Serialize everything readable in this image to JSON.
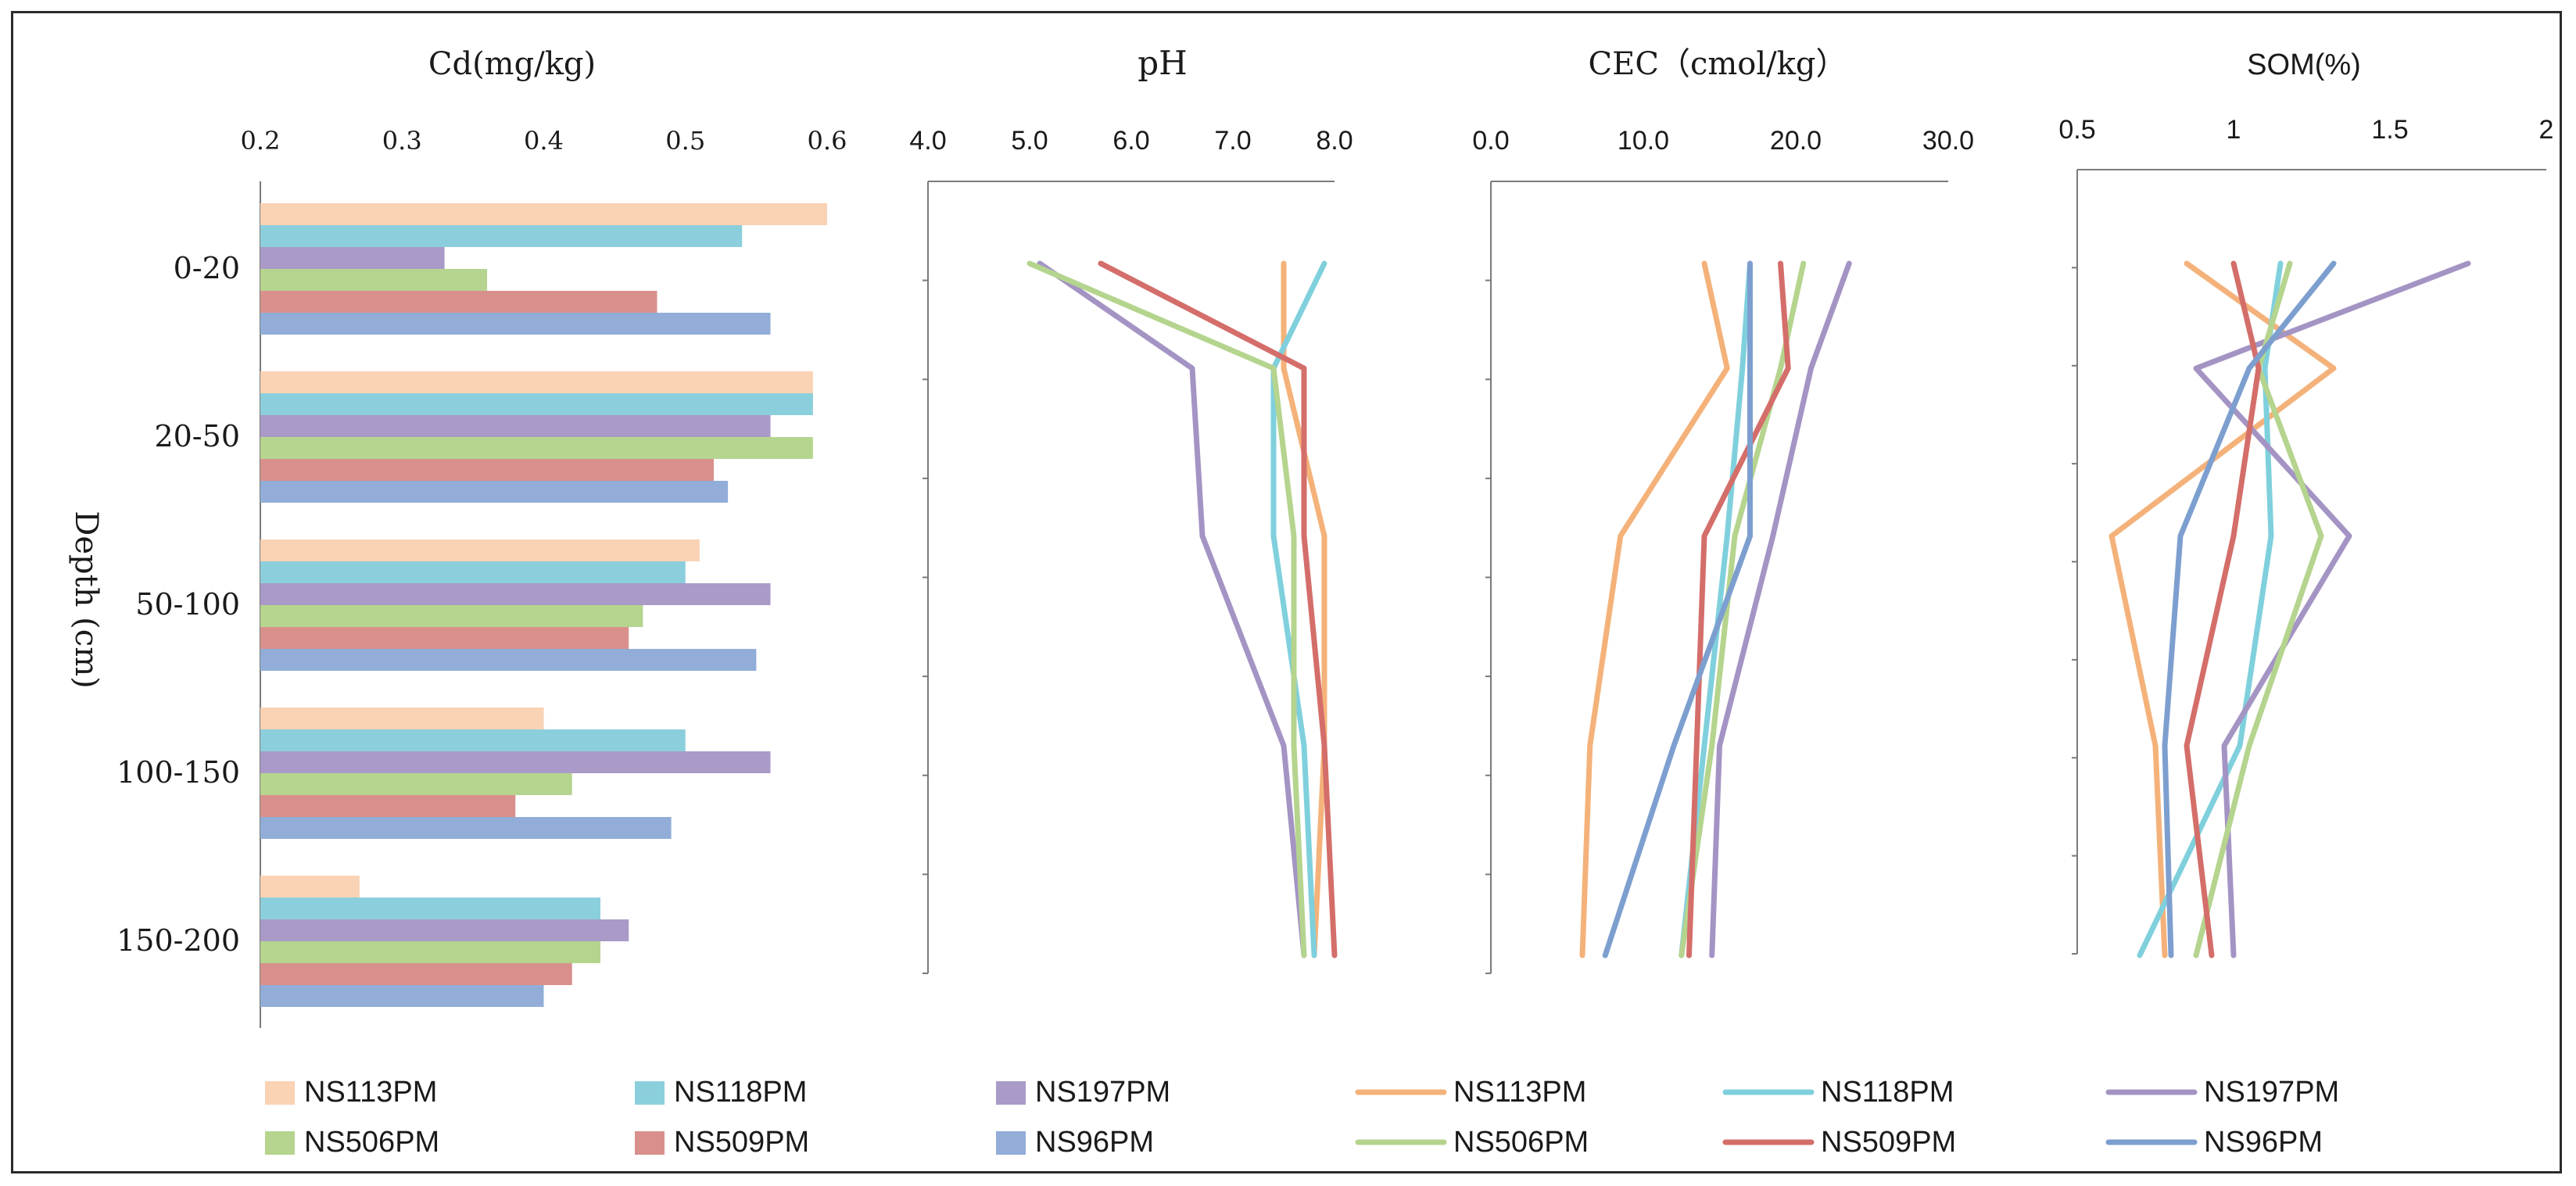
{
  "chart_data": [
    {
      "type": "bar",
      "orientation": "horizontal",
      "title": "Cd(mg/kg)",
      "ylabel": "Depth (cm)",
      "xlim": [
        0.2,
        0.6
      ],
      "x_ticks": [
        "0.2",
        "0.3",
        "0.4",
        "0.5",
        "0.6"
      ],
      "categories": [
        "0-20",
        "20-50",
        "50-100",
        "100-150",
        "150-200"
      ],
      "series": [
        {
          "name": "NS113PM",
          "color": "#fad2b4",
          "values": [
            0.6,
            0.59,
            0.51,
            0.4,
            0.27
          ]
        },
        {
          "name": "NS118PM",
          "color": "#8ccfdc",
          "values": [
            0.54,
            0.59,
            0.5,
            0.5,
            0.44
          ]
        },
        {
          "name": "NS197PM",
          "color": "#a99ac8",
          "values": [
            0.33,
            0.56,
            0.56,
            0.56,
            0.46
          ]
        },
        {
          "name": "NS506PM",
          "color": "#b5d58e",
          "values": [
            0.36,
            0.59,
            0.47,
            0.42,
            0.44
          ]
        },
        {
          "name": "NS509PM",
          "color": "#d9908c",
          "values": [
            0.48,
            0.52,
            0.46,
            0.38,
            0.42
          ]
        },
        {
          "name": "NS96PM",
          "color": "#92aed8",
          "values": [
            0.56,
            0.53,
            0.55,
            0.49,
            0.4
          ]
        }
      ]
    },
    {
      "type": "line",
      "title": "pH",
      "xlim": [
        4.0,
        8.0
      ],
      "x_ticks": [
        "4.0",
        "5.0",
        "6.0",
        "7.0",
        "8.0"
      ],
      "y": [
        10,
        35,
        75,
        125,
        175
      ],
      "ylim": [
        200,
        0
      ],
      "series": [
        {
          "name": "NS113PM",
          "color": "#f4b27a",
          "values": [
            7.5,
            7.5,
            7.9,
            7.9,
            7.8
          ]
        },
        {
          "name": "NS118PM",
          "color": "#7fd0dc",
          "values": [
            7.9,
            7.4,
            7.4,
            7.7,
            7.8
          ]
        },
        {
          "name": "NS197PM",
          "color": "#a494c4",
          "values": [
            5.1,
            6.6,
            6.7,
            7.5,
            7.7
          ]
        },
        {
          "name": "NS506PM",
          "color": "#b5d48e",
          "values": [
            5.0,
            7.4,
            7.6,
            7.6,
            7.7
          ]
        },
        {
          "name": "NS509PM",
          "color": "#d46e6a",
          "values": [
            5.7,
            7.7,
            7.7,
            7.9,
            8.0
          ]
        },
        {
          "name": "NS96PM",
          "color": "#7d9fcf",
          "values": [
            null,
            null,
            null,
            null,
            null
          ]
        }
      ]
    },
    {
      "type": "line",
      "title": "CEC（cmol/kg）",
      "xlim": [
        0.0,
        30.0
      ],
      "x_ticks": [
        "0.0",
        "10.0",
        "20.0",
        "30.0"
      ],
      "y": [
        10,
        35,
        75,
        125,
        175
      ],
      "ylim": [
        200,
        0
      ],
      "series": [
        {
          "name": "NS113PM",
          "color": "#f4b27a",
          "values": [
            14.0,
            15.5,
            8.5,
            6.5,
            6.0
          ]
        },
        {
          "name": "NS118PM",
          "color": "#7fd0dc",
          "values": [
            17.0,
            16.5,
            15.5,
            14.0,
            12.5
          ]
        },
        {
          "name": "NS197PM",
          "color": "#a494c4",
          "values": [
            23.5,
            21.0,
            18.5,
            15.0,
            14.5
          ]
        },
        {
          "name": "NS506PM",
          "color": "#b5d48e",
          "values": [
            20.5,
            19.0,
            16.0,
            14.5,
            12.5
          ]
        },
        {
          "name": "NS509PM",
          "color": "#d46e6a",
          "values": [
            19.0,
            19.5,
            14.0,
            13.5,
            13.0
          ]
        },
        {
          "name": "NS96PM",
          "color": "#7d9fcf",
          "values": [
            17.0,
            17.0,
            17.0,
            12.0,
            7.5
          ]
        }
      ]
    },
    {
      "type": "line",
      "title": "SOM(%)",
      "xlim": [
        0.5,
        2.0
      ],
      "x_ticks": [
        "0.5",
        "1",
        "1.5",
        "2"
      ],
      "y": [
        10,
        35,
        75,
        125,
        175
      ],
      "ylim": [
        200,
        0
      ],
      "series": [
        {
          "name": "NS113PM",
          "color": "#f4b27a",
          "values": [
            0.85,
            1.32,
            0.61,
            0.75,
            0.78
          ]
        },
        {
          "name": "NS118PM",
          "color": "#7fd0dc",
          "values": [
            1.15,
            1.1,
            1.12,
            1.02,
            0.7
          ]
        },
        {
          "name": "NS197PM",
          "color": "#a494c4",
          "values": [
            1.75,
            0.88,
            1.37,
            0.97,
            1.0
          ]
        },
        {
          "name": "NS506PM",
          "color": "#b5d48e",
          "values": [
            1.18,
            1.08,
            1.28,
            1.05,
            0.88
          ]
        },
        {
          "name": "NS509PM",
          "color": "#d46e6a",
          "values": [
            1.0,
            1.08,
            1.0,
            0.85,
            0.93
          ]
        },
        {
          "name": "NS96PM",
          "color": "#7d9fcf",
          "values": [
            1.32,
            1.05,
            0.83,
            0.78,
            0.8
          ]
        }
      ]
    }
  ],
  "legend": {
    "bar_items": [
      "NS113PM",
      "NS118PM",
      "NS197PM",
      "NS506PM",
      "NS509PM",
      "NS96PM"
    ],
    "line_items": [
      "NS113PM",
      "NS118PM",
      "NS197PM",
      "NS506PM",
      "NS509PM",
      "NS96PM"
    ]
  }
}
